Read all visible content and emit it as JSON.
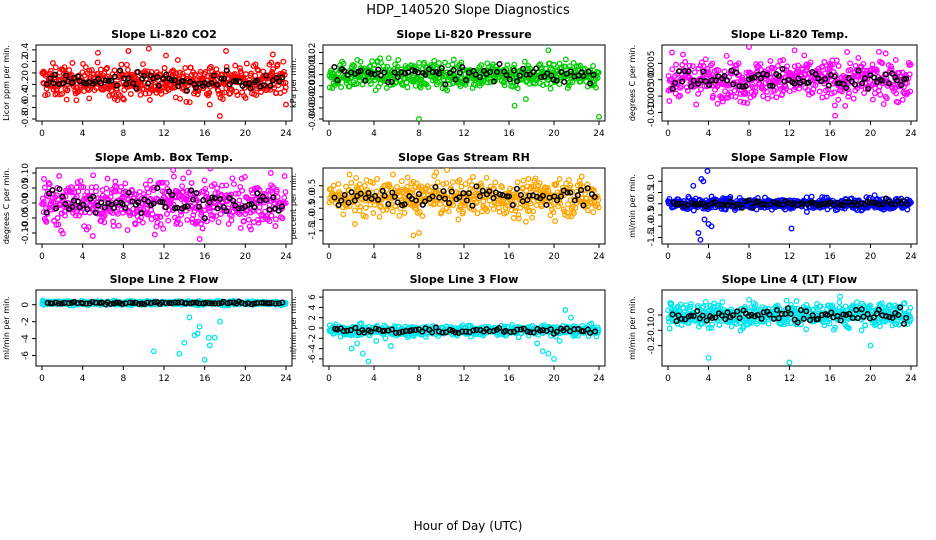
{
  "title": "HDP_140520  Slope Diagnostics",
  "xlabel": "Hour of Day (UTC)",
  "colors": {
    "background": "#ffffff",
    "axis": "#000000",
    "overlay": "#000000"
  },
  "chart_data": [
    {
      "type": "scatter",
      "title": "Slope Li-820 CO2",
      "ylabel": "Licor ppm per min.",
      "color": "#ff0000",
      "xlim": [
        0,
        24
      ],
      "xticks": [
        0,
        4,
        8,
        12,
        16,
        20,
        24
      ],
      "ylim": [
        -0.8,
        0.45
      ],
      "yticks": [
        -0.8,
        -0.6,
        -0.4,
        -0.2,
        0,
        0.2,
        0.4
      ],
      "ytick_labels": [
        "-0.8",
        "-0.6",
        "-0.4",
        "-0.2",
        "0",
        "0.2",
        "0.4"
      ],
      "center": -0.15,
      "spread": 0.14,
      "outliers": [
        [
          5.5,
          0.35
        ],
        [
          8.5,
          0.38
        ],
        [
          10.5,
          0.42
        ],
        [
          12.2,
          0.3
        ],
        [
          18.1,
          0.38
        ],
        [
          16.5,
          -0.55
        ],
        [
          17.5,
          -0.75
        ],
        [
          22.7,
          0.32
        ],
        [
          24,
          -0.55
        ]
      ]
    },
    {
      "type": "scatter",
      "title": "Slope Li-820 Pressure",
      "ylabel": "kPa per min.",
      "color": "#00cc00",
      "xlim": [
        0,
        24
      ],
      "xticks": [
        0,
        4,
        8,
        12,
        16,
        20,
        24
      ],
      "ylim": [
        -0.04,
        0.025
      ],
      "yticks": [
        -0.04,
        -0.03,
        -0.02,
        -0.01,
        0,
        0.01,
        0.02
      ],
      "ytick_labels": [
        "-0.04",
        "-0.03",
        "-0.02",
        "-0.01",
        "0.00",
        "0.01",
        "0.02"
      ],
      "center": 0.0,
      "spread": 0.006,
      "outliers": [
        [
          8,
          -0.04
        ],
        [
          16.5,
          -0.028
        ],
        [
          17.5,
          -0.022
        ],
        [
          19.5,
          0.022
        ],
        [
          20.5,
          0.01
        ],
        [
          24,
          -0.038
        ],
        [
          0.3,
          -0.012
        ]
      ]
    },
    {
      "type": "scatter",
      "title": "Slope Li-820 Temp.",
      "ylabel": "degrees C per min.",
      "color": "#ff00ff",
      "xlim": [
        0,
        24
      ],
      "xticks": [
        0,
        4,
        8,
        12,
        16,
        20,
        24
      ],
      "ylim": [
        -0.012,
        0.01
      ],
      "yticks": [
        -0.01,
        -0.005,
        0,
        0.005
      ],
      "ytick_labels": [
        "-0.010",
        "-0.005",
        "0.000",
        "0.005"
      ],
      "center": 0.0,
      "spread": 0.003,
      "outliers": [
        [
          8,
          0.01
        ],
        [
          7.5,
          -0.007
        ],
        [
          16.5,
          -0.011
        ],
        [
          17.5,
          -0.008
        ],
        [
          21.5,
          0.008
        ],
        [
          12.5,
          0.009
        ]
      ]
    },
    {
      "type": "scatter",
      "title": "Slope Amb. Box Temp.",
      "ylabel": "degrees C per min.",
      "color": "#ff00ff",
      "xlim": [
        0,
        24
      ],
      "xticks": [
        0,
        4,
        8,
        12,
        16,
        20,
        24
      ],
      "ylim": [
        -0.13,
        0.11
      ],
      "yticks": [
        -0.1,
        -0.05,
        0,
        0.05,
        0.1
      ],
      "ytick_labels": [
        "-0.10",
        "-0.05",
        "0.00",
        "0.05",
        "0.10"
      ],
      "center": 0.0,
      "spread": 0.04,
      "outliers": [
        [
          15.5,
          -0.12
        ],
        [
          22.5,
          0.1
        ],
        [
          0.2,
          0.08
        ],
        [
          5,
          -0.11
        ]
      ]
    },
    {
      "type": "scatter",
      "title": "Slope Gas Stream RH",
      "ylabel": "percent per min.",
      "color": "#ffa500",
      "xlim": [
        0,
        24
      ],
      "xticks": [
        0,
        4,
        8,
        12,
        16,
        20,
        24
      ],
      "ylim": [
        -2.0,
        1.2
      ],
      "yticks": [
        -1.5,
        -1.0,
        -0.5,
        0,
        0.5
      ],
      "ytick_labels": [
        "-1.5",
        "-1.0",
        "-0.5",
        "0.0",
        "0.5"
      ],
      "center": 0.0,
      "spread": 0.4,
      "outliers": [
        [
          2.3,
          -1.2
        ],
        [
          7.5,
          -1.7
        ],
        [
          8,
          -1.6
        ],
        [
          11.5,
          -1.0
        ],
        [
          17.5,
          -1.1
        ],
        [
          20.5,
          0.8
        ]
      ]
    },
    {
      "type": "scatter",
      "title": "Slope Sample Flow",
      "ylabel": "ml/min per min.",
      "color": "#0000ff",
      "xlim": [
        0,
        24
      ],
      "xticks": [
        0,
        4,
        8,
        12,
        16,
        20,
        24
      ],
      "ylim": [
        -1.7,
        1.5
      ],
      "yticks": [
        -1.5,
        -1.0,
        -0.5,
        0,
        0.5,
        1.0
      ],
      "ytick_labels": [
        "-1.5",
        "-1.0",
        "-0.5",
        "0.0",
        "0.5",
        "1.0"
      ],
      "center": 0.0,
      "spread": 0.13,
      "outliers": [
        [
          3.3,
          1.1
        ],
        [
          3.5,
          1.0
        ],
        [
          3.9,
          1.45
        ],
        [
          2.5,
          0.8
        ],
        [
          3.6,
          -0.7
        ],
        [
          4.0,
          -0.9
        ],
        [
          4.3,
          -1.0
        ],
        [
          3.0,
          -1.3
        ],
        [
          3.2,
          -1.6
        ],
        [
          12.2,
          -1.1
        ]
      ]
    },
    {
      "type": "scatter",
      "title": "Slope Line 2 Flow",
      "ylabel": "ml/min per min.",
      "color": "#00e5ee",
      "xlim": [
        0,
        24
      ],
      "xticks": [
        0,
        4,
        8,
        12,
        16,
        20,
        24
      ],
      "ylim": [
        -7,
        1.5
      ],
      "yticks": [
        -6,
        -4,
        -2,
        0
      ],
      "ytick_labels": [
        "-6",
        "-4",
        "-2",
        "0"
      ],
      "center": 0.2,
      "spread": 0.12,
      "outliers": [
        [
          11,
          -5.5
        ],
        [
          13.5,
          -5.8
        ],
        [
          14,
          -4.5
        ],
        [
          14.5,
          -1.5
        ],
        [
          15,
          -3.6
        ],
        [
          15.5,
          -2.6
        ],
        [
          16,
          -6.5
        ],
        [
          16.5,
          -4.8
        ],
        [
          17,
          -3.9
        ],
        [
          17.5,
          -2.0
        ],
        [
          15.3,
          -3.4
        ],
        [
          16.4,
          -3.9
        ]
      ]
    },
    {
      "type": "scatter",
      "title": "Slope Line 3 Flow",
      "ylabel": "ml/min per min.",
      "color": "#00e5ee",
      "xlim": [
        0,
        24
      ],
      "xticks": [
        0,
        4,
        8,
        12,
        16,
        20,
        24
      ],
      "ylim": [
        -7,
        7
      ],
      "yticks": [
        -6,
        -4,
        -2,
        0,
        2,
        4,
        6
      ],
      "ytick_labels": [
        "-6",
        "-4",
        "-2",
        "0",
        "2",
        "4",
        "6"
      ],
      "center": -0.5,
      "spread": 0.5,
      "outliers": [
        [
          2,
          -4
        ],
        [
          2.5,
          -3
        ],
        [
          3,
          -5
        ],
        [
          3.5,
          -6.5
        ],
        [
          4.2,
          -2.5
        ],
        [
          5,
          -2
        ],
        [
          5.5,
          -3.5
        ],
        [
          6,
          -1.5
        ],
        [
          7,
          -1.8
        ],
        [
          18.5,
          -3
        ],
        [
          19,
          -4.5
        ],
        [
          19.5,
          -5
        ],
        [
          20,
          -6
        ],
        [
          20.5,
          -2.5
        ],
        [
          21,
          3.5
        ],
        [
          21.5,
          2
        ]
      ]
    },
    {
      "type": "scatter",
      "title": "Slope Line 4 (LT) Flow",
      "ylabel": "ml/min per min.",
      "color": "#00e5ee",
      "xlim": [
        0,
        24
      ],
      "xticks": [
        0,
        4,
        8,
        12,
        16,
        20,
        24
      ],
      "ylim": [
        -0.32,
        0.15
      ],
      "yticks": [
        -0.2,
        -0.1,
        0
      ],
      "ytick_labels": [
        "-0.2",
        "-0.1",
        "0.0"
      ],
      "center": 0.0,
      "spread": 0.04,
      "outliers": [
        [
          4,
          -0.28
        ],
        [
          12,
          -0.31
        ],
        [
          20,
          -0.2
        ],
        [
          8,
          0.1
        ],
        [
          17,
          0.12
        ]
      ]
    }
  ]
}
